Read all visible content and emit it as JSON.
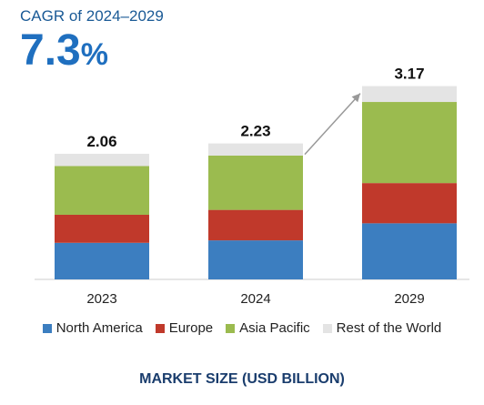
{
  "header": {
    "cagr_label": "CAGR of 2024–2029",
    "cagr_number": "7.3",
    "cagr_unit": "%"
  },
  "footer": {
    "title": "MARKET SIZE (USD BILLION)"
  },
  "colors": {
    "North America": "#3c7ec0",
    "Europe": "#c0392b",
    "Asia Pacific": "#9bbb4f",
    "Rest of the World": "#e4e4e4",
    "arrow": "#999999"
  },
  "chart_data": {
    "type": "bar",
    "stacked": true,
    "categories": [
      "2023",
      "2024",
      "2029"
    ],
    "totals": [
      "2.06",
      "2.23",
      "3.17"
    ],
    "series": [
      {
        "name": "North America",
        "values": [
          0.6,
          0.64,
          0.92
        ]
      },
      {
        "name": "Europe",
        "values": [
          0.46,
          0.5,
          0.66
        ]
      },
      {
        "name": "Asia Pacific",
        "values": [
          0.8,
          0.89,
          1.33
        ]
      },
      {
        "name": "Rest of the World",
        "values": [
          0.2,
          0.2,
          0.26
        ]
      }
    ],
    "legend_position": "bottom",
    "grid": false,
    "growth_arrow": {
      "from": "2024",
      "to": "2029"
    }
  }
}
